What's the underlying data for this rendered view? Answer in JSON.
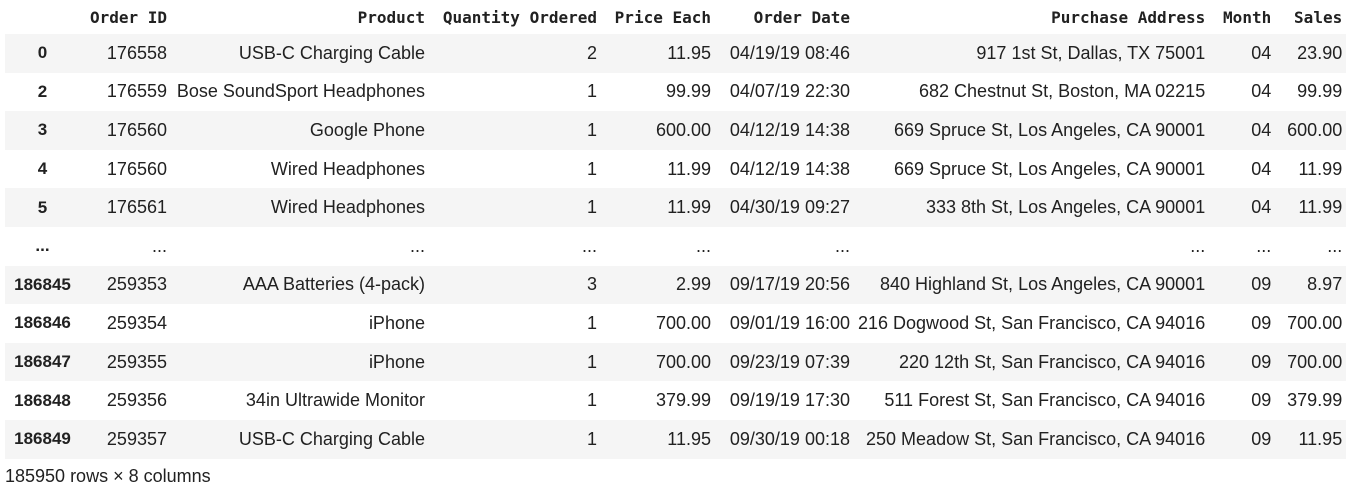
{
  "table": {
    "columns": [
      "Order ID",
      "Product",
      "Quantity Ordered",
      "Price Each",
      "Order Date",
      "Purchase Address",
      "Month",
      "Sales"
    ],
    "rows": [
      {
        "index": "0",
        "cells": [
          "176558",
          "USB-C Charging Cable",
          "2",
          "11.95",
          "04/19/19 08:46",
          "917 1st St, Dallas, TX 75001",
          "04",
          "23.90"
        ]
      },
      {
        "index": "2",
        "cells": [
          "176559",
          "Bose SoundSport Headphones",
          "1",
          "99.99",
          "04/07/19 22:30",
          "682 Chestnut St, Boston, MA 02215",
          "04",
          "99.99"
        ]
      },
      {
        "index": "3",
        "cells": [
          "176560",
          "Google Phone",
          "1",
          "600.00",
          "04/12/19 14:38",
          "669 Spruce St, Los Angeles, CA 90001",
          "04",
          "600.00"
        ]
      },
      {
        "index": "4",
        "cells": [
          "176560",
          "Wired Headphones",
          "1",
          "11.99",
          "04/12/19 14:38",
          "669 Spruce St, Los Angeles, CA 90001",
          "04",
          "11.99"
        ]
      },
      {
        "index": "5",
        "cells": [
          "176561",
          "Wired Headphones",
          "1",
          "11.99",
          "04/30/19 09:27",
          "333 8th St, Los Angeles, CA 90001",
          "04",
          "11.99"
        ]
      },
      {
        "index": "...",
        "cells": [
          "...",
          "...",
          "...",
          "...",
          "...",
          "...",
          "...",
          "..."
        ]
      },
      {
        "index": "186845",
        "cells": [
          "259353",
          "AAA Batteries (4-pack)",
          "3",
          "2.99",
          "09/17/19 20:56",
          "840 Highland St, Los Angeles, CA 90001",
          "09",
          "8.97"
        ]
      },
      {
        "index": "186846",
        "cells": [
          "259354",
          "iPhone",
          "1",
          "700.00",
          "09/01/19 16:00",
          "216 Dogwood St, San Francisco, CA 94016",
          "09",
          "700.00"
        ]
      },
      {
        "index": "186847",
        "cells": [
          "259355",
          "iPhone",
          "1",
          "700.00",
          "09/23/19 07:39",
          "220 12th St, San Francisco, CA 94016",
          "09",
          "700.00"
        ]
      },
      {
        "index": "186848",
        "cells": [
          "259356",
          "34in Ultrawide Monitor",
          "1",
          "379.99",
          "09/19/19 17:30",
          "511 Forest St, San Francisco, CA 94016",
          "09",
          "379.99"
        ]
      },
      {
        "index": "186849",
        "cells": [
          "259357",
          "USB-C Charging Cable",
          "1",
          "11.95",
          "09/30/19 00:18",
          "250 Meadow St, San Francisco, CA 94016",
          "09",
          "11.95"
        ]
      }
    ]
  },
  "footer": {
    "shape": "185950 rows × 8 columns"
  }
}
